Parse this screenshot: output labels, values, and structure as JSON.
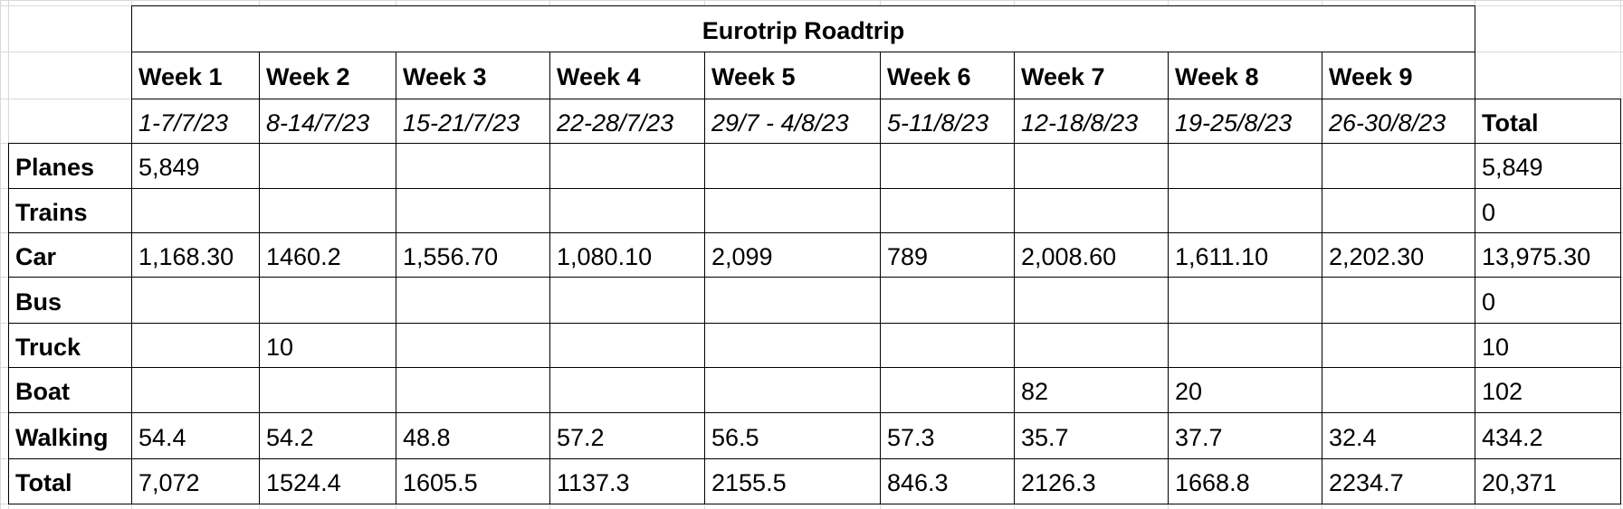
{
  "table": {
    "title": "Eurotrip Roadtrip",
    "weeks": [
      "Week 1",
      "Week 2",
      "Week 3",
      "Week 4",
      "Week 5",
      "Week 6",
      "Week 7",
      "Week 8",
      "Week 9"
    ],
    "dates": [
      "1-7/7/23",
      "8-14/7/23",
      "15-21/7/23",
      "22-28/7/23",
      "29/7 - 4/8/23",
      "5-11/8/23",
      "12-18/8/23",
      "19-25/8/23",
      "26-30/8/23"
    ],
    "total_header": "Total",
    "rows": [
      {
        "label": "Planes",
        "cells": [
          "5,849",
          null,
          null,
          null,
          null,
          null,
          null,
          null,
          null
        ],
        "total": "5,849"
      },
      {
        "label": "Trains",
        "cells": [
          null,
          null,
          null,
          null,
          null,
          null,
          null,
          null,
          null
        ],
        "total": "0"
      },
      {
        "label": "Car",
        "cells": [
          "1,168.30",
          "1460.2",
          "1,556.70",
          "1,080.10",
          "2,099",
          "789",
          "2,008.60",
          "1,611.10",
          "2,202.30"
        ],
        "total": "13,975.30"
      },
      {
        "label": "Bus",
        "cells": [
          null,
          null,
          null,
          null,
          null,
          null,
          null,
          null,
          null
        ],
        "total": "0"
      },
      {
        "label": "Truck",
        "cells": [
          null,
          "10",
          null,
          null,
          null,
          null,
          null,
          null,
          null
        ],
        "total": "10"
      },
      {
        "label": "Boat",
        "cells": [
          null,
          null,
          null,
          null,
          null,
          null,
          "82",
          "20",
          null
        ],
        "total": "102"
      },
      {
        "label": "Walking",
        "cells": [
          "54.4",
          "54.2",
          "48.8",
          "57.2",
          "56.5",
          "57.3",
          "35.7",
          "37.7",
          "32.4"
        ],
        "total": "434.2"
      },
      {
        "label": "Total",
        "cells": [
          "7,072",
          "1524.4",
          "1605.5",
          "1137.3",
          "2155.5",
          "846.3",
          "2126.3",
          "1668.8",
          "2234.7"
        ],
        "total": "20,371"
      }
    ]
  }
}
